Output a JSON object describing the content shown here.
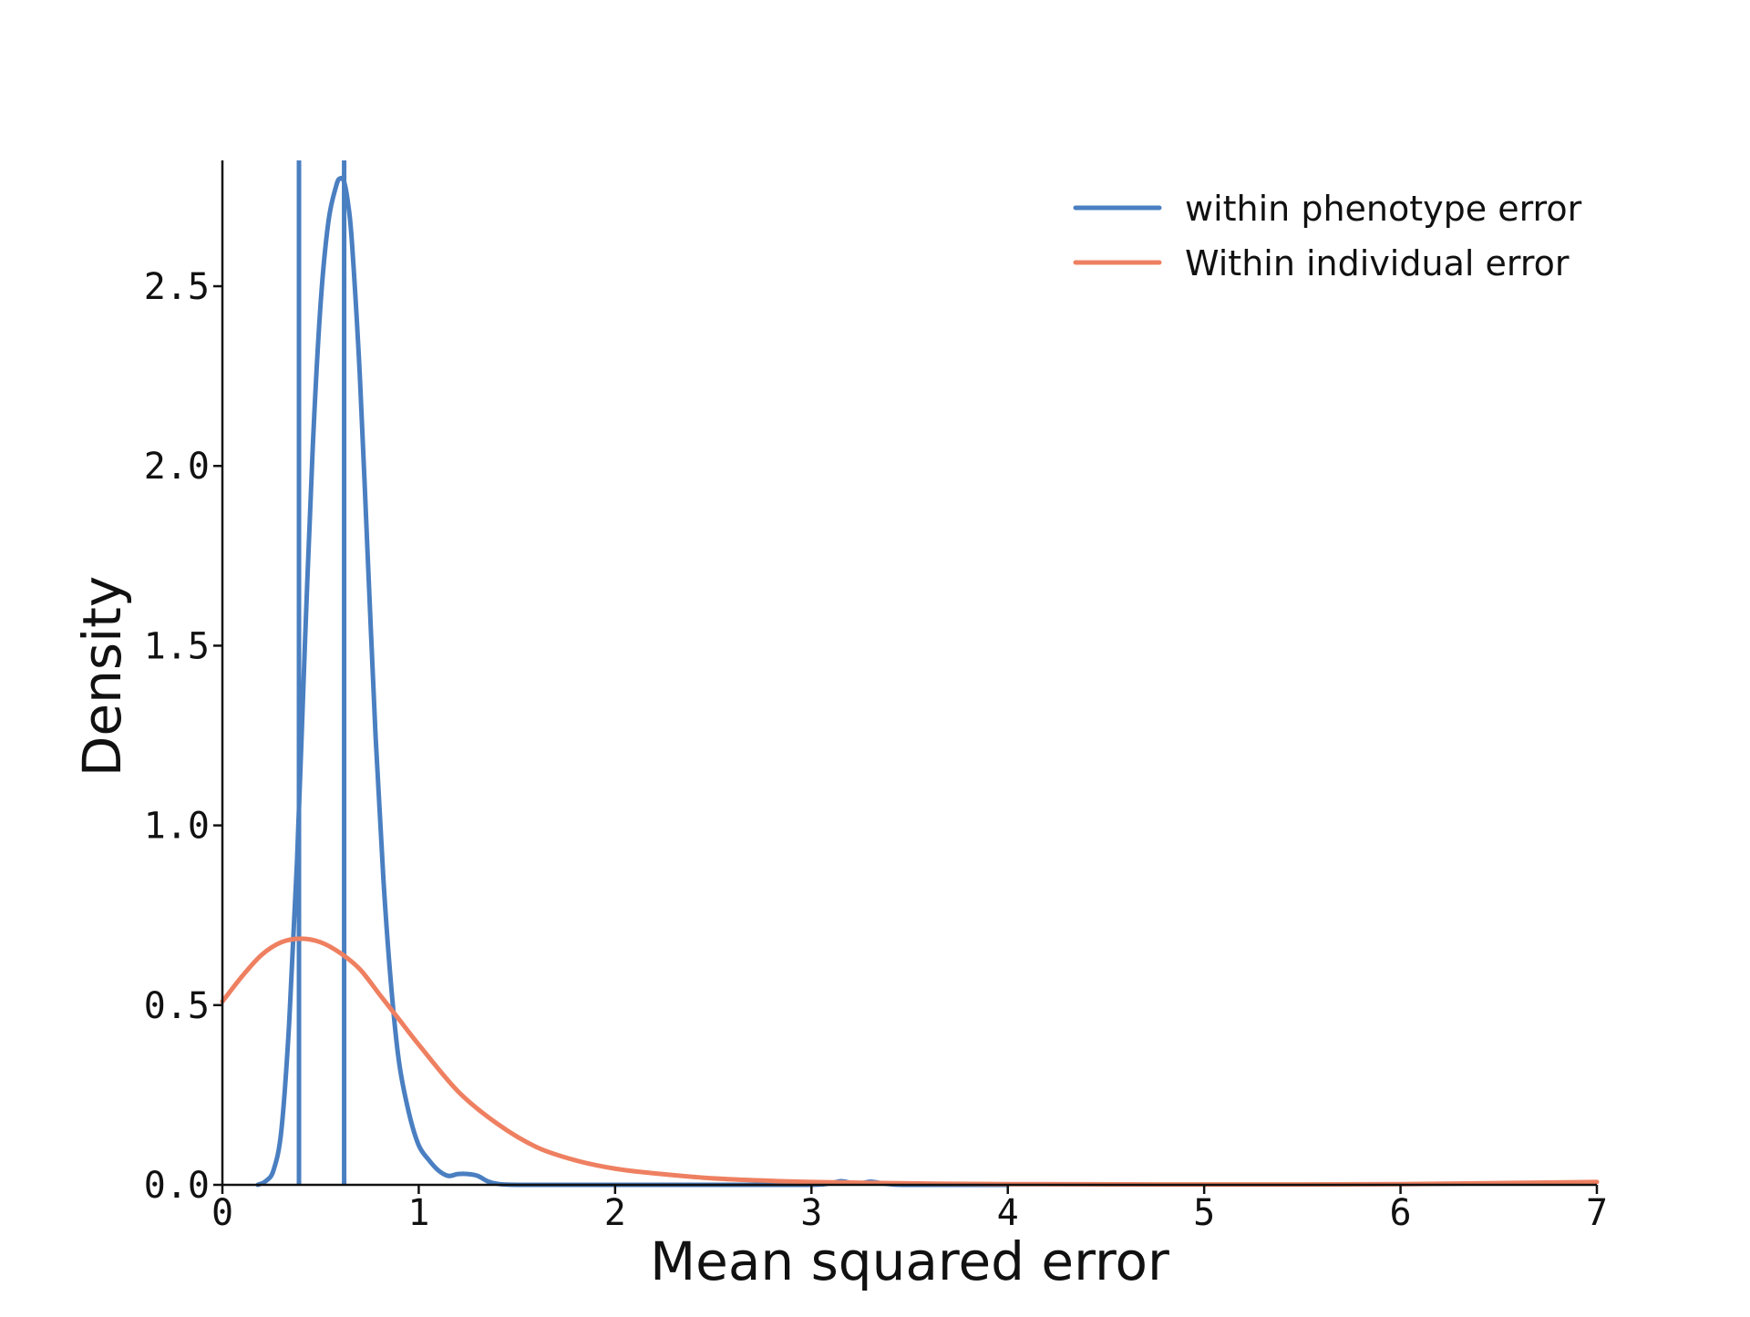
{
  "chart_data": {
    "type": "line",
    "title": "",
    "xlabel": "Mean squared error",
    "ylabel": "Density",
    "xlim": [
      0,
      7
    ],
    "ylim": [
      0,
      2.85
    ],
    "xticks": [
      0,
      1,
      2,
      3,
      4,
      5,
      6,
      7
    ],
    "xtick_labels": [
      "0",
      "1",
      "2",
      "3",
      "4",
      "5",
      "6",
      "7"
    ],
    "yticks": [
      0.0,
      0.5,
      1.0,
      1.5,
      2.0,
      2.5
    ],
    "ytick_labels": [
      "0.0",
      "0.5",
      "1.0",
      "1.5",
      "2.0",
      "2.5"
    ],
    "grid": false,
    "legend_position": "top-right",
    "colors": {
      "within_phenotype": "#4A7FC1",
      "within_individual": "#EE8061"
    },
    "vertical_lines": [
      {
        "x": 0.39,
        "series": "within phenotype error"
      },
      {
        "x": 0.62,
        "series": "within phenotype error"
      }
    ],
    "series": [
      {
        "name": "within phenotype error",
        "color_key": "within_phenotype",
        "x": [
          0.18,
          0.22,
          0.26,
          0.3,
          0.34,
          0.38,
          0.42,
          0.46,
          0.5,
          0.54,
          0.58,
          0.6,
          0.62,
          0.64,
          0.66,
          0.7,
          0.74,
          0.78,
          0.82,
          0.86,
          0.9,
          0.95,
          1.0,
          1.05,
          1.1,
          1.15,
          1.2,
          1.25,
          1.3,
          1.35,
          1.4,
          1.5,
          2.0,
          2.5,
          3.0,
          3.1,
          3.15,
          3.2,
          3.25,
          3.3,
          3.35,
          3.4,
          3.5,
          4.0
        ],
        "y": [
          0.0,
          0.01,
          0.04,
          0.15,
          0.45,
          0.9,
          1.5,
          2.05,
          2.45,
          2.68,
          2.78,
          2.8,
          2.79,
          2.73,
          2.62,
          2.25,
          1.75,
          1.25,
          0.85,
          0.55,
          0.34,
          0.2,
          0.11,
          0.07,
          0.04,
          0.025,
          0.03,
          0.03,
          0.025,
          0.01,
          0.003,
          0.0,
          0.0,
          0.0,
          0.0,
          0.005,
          0.01,
          0.006,
          0.004,
          0.009,
          0.005,
          0.002,
          0.0,
          0.0
        ]
      },
      {
        "name": "Within individual error",
        "color_key": "within_individual",
        "x": [
          0.0,
          0.1,
          0.2,
          0.3,
          0.4,
          0.5,
          0.6,
          0.7,
          0.8,
          0.9,
          1.0,
          1.2,
          1.4,
          1.6,
          1.8,
          2.0,
          2.2,
          2.5,
          2.8,
          3.0,
          3.5,
          4.0,
          5.0,
          6.0,
          7.0
        ],
        "y": [
          0.51,
          0.58,
          0.64,
          0.675,
          0.685,
          0.675,
          0.645,
          0.6,
          0.53,
          0.46,
          0.39,
          0.26,
          0.17,
          0.105,
          0.068,
          0.045,
          0.032,
          0.018,
          0.011,
          0.008,
          0.004,
          0.002,
          0.001,
          0.002,
          0.008
        ]
      }
    ]
  }
}
